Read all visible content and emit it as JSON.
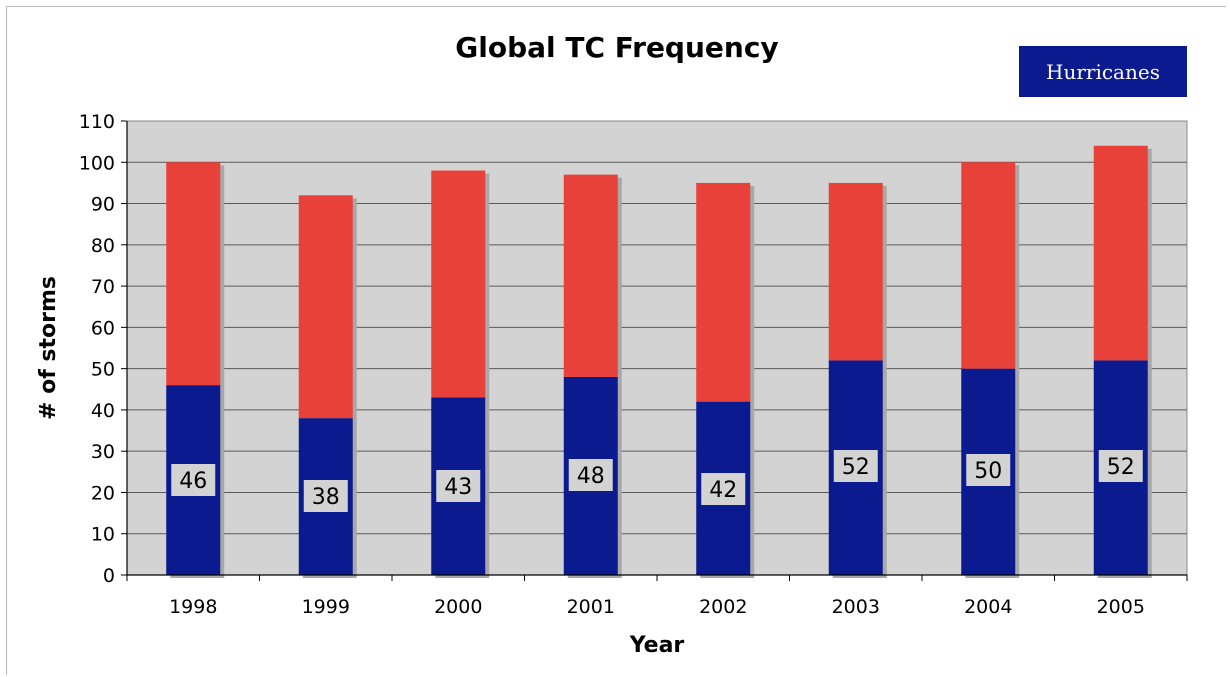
{
  "chart_data": {
    "type": "bar",
    "stacked": true,
    "title": "Global TC Frequency",
    "xlabel": "Year",
    "ylabel": "# of storms",
    "categories": [
      "1998",
      "1999",
      "2000",
      "2001",
      "2002",
      "2003",
      "2004",
      "2005"
    ],
    "ylim": [
      0,
      110
    ],
    "yticks": [
      0,
      10,
      20,
      30,
      40,
      50,
      60,
      70,
      80,
      90,
      100,
      110
    ],
    "grid": true,
    "legend_position": "top-right",
    "legend": [
      "Hurricanes"
    ],
    "series": [
      {
        "name": "Hurricanes",
        "color": "#0c1a8f",
        "values": [
          46,
          38,
          43,
          48,
          42,
          52,
          50,
          52
        ],
        "labels": [
          "46",
          "38",
          "43",
          "48",
          "42",
          "52",
          "50",
          "52"
        ]
      },
      {
        "color": "#e8413a",
        "values": [
          54,
          54,
          55,
          49,
          53,
          43,
          50,
          52
        ]
      }
    ],
    "plot_background": "#d3d3d3",
    "label_background": "#d3d3d3"
  }
}
